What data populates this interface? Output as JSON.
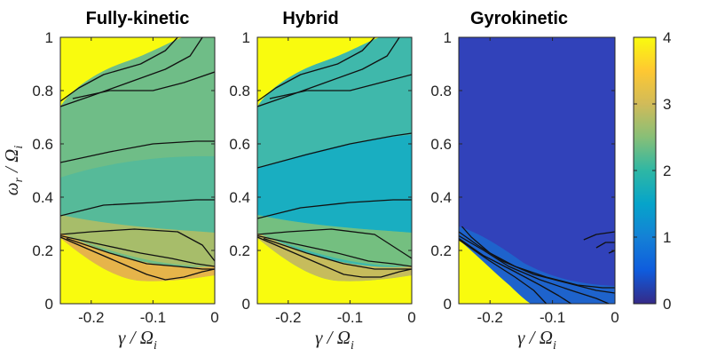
{
  "chart_data": [
    {
      "type": "heatmap",
      "title": "Fully-kinetic",
      "xlabel": {
        "main": "γ / Ω",
        "sub": "i"
      },
      "ylabel": {
        "main": "ω",
        "sub": "r",
        "denom": "/ Ω",
        "denom_sub": "i"
      },
      "xlim": [
        -0.25,
        0
      ],
      "ylim": [
        0,
        1
      ],
      "xticks": [
        -0.2,
        -0.1,
        0
      ],
      "xtick_labels": [
        "-0.2",
        "-0.1",
        "0"
      ],
      "yticks": [
        0,
        0.2,
        0.4,
        0.6,
        0.8,
        1
      ],
      "ytick_labels": [
        "0",
        "0.2",
        "0.4",
        "0.6",
        "0.8",
        "1"
      ],
      "regions": [
        {
          "name": "upper-saturated",
          "value": 4
        },
        {
          "name": "upper-band",
          "value": 2.3
        },
        {
          "name": "middle-band",
          "value": 2.0
        },
        {
          "name": "lower-band",
          "value": 2.6
        },
        {
          "name": "bottom-band",
          "value": 3.3
        },
        {
          "name": "lower-saturated",
          "value": 4
        }
      ],
      "contour_lines": [
        {
          "level": "boundary-upper",
          "points": [
            [
              -0.25,
              0.76
            ],
            [
              -0.22,
              0.81
            ],
            [
              -0.18,
              0.86
            ],
            [
              -0.12,
              0.9
            ],
            [
              -0.08,
              0.95
            ],
            [
              -0.06,
              1.0
            ]
          ]
        },
        {
          "level": "c1",
          "points": [
            [
              -0.25,
              0.74
            ],
            [
              -0.2,
              0.78
            ],
            [
              -0.14,
              0.83
            ],
            [
              -0.08,
              0.88
            ],
            [
              -0.04,
              0.93
            ],
            [
              -0.02,
              1.0
            ]
          ]
        },
        {
          "level": "c2",
          "points": [
            [
              -0.23,
              0.77
            ],
            [
              -0.17,
              0.8
            ],
            [
              -0.1,
              0.8
            ],
            [
              -0.05,
              0.83
            ],
            [
              0.0,
              0.87
            ]
          ]
        },
        {
          "level": "c3",
          "points": [
            [
              -0.25,
              0.53
            ],
            [
              -0.17,
              0.57
            ],
            [
              -0.1,
              0.6
            ],
            [
              -0.03,
              0.61
            ],
            [
              0.0,
              0.61
            ]
          ]
        },
        {
          "level": "c4",
          "points": [
            [
              -0.25,
              0.33
            ],
            [
              -0.18,
              0.37
            ],
            [
              -0.1,
              0.38
            ],
            [
              -0.03,
              0.39
            ],
            [
              0.0,
              0.39
            ]
          ]
        },
        {
          "level": "c5",
          "points": [
            [
              -0.25,
              0.26
            ],
            [
              -0.2,
              0.27
            ],
            [
              -0.13,
              0.28
            ],
            [
              -0.06,
              0.27
            ],
            [
              -0.02,
              0.22
            ],
            [
              0.0,
              0.16
            ]
          ]
        },
        {
          "level": "c6",
          "points": [
            [
              -0.25,
              0.255
            ],
            [
              -0.18,
              0.22
            ],
            [
              -0.12,
              0.19
            ],
            [
              -0.07,
              0.17
            ],
            [
              -0.03,
              0.15
            ],
            [
              0.0,
              0.14
            ]
          ]
        },
        {
          "level": "c7",
          "points": [
            [
              -0.24,
              0.245
            ],
            [
              -0.17,
              0.19
            ],
            [
              -0.11,
              0.15
            ],
            [
              -0.06,
              0.14
            ],
            [
              -0.02,
              0.13
            ],
            [
              0.0,
              0.13
            ]
          ]
        },
        {
          "level": "boundary-lower",
          "points": [
            [
              -0.25,
              0.25
            ],
            [
              -0.2,
              0.2
            ],
            [
              -0.15,
              0.15
            ],
            [
              -0.11,
              0.11
            ],
            [
              -0.08,
              0.09
            ],
            [
              -0.05,
              0.1
            ],
            [
              -0.02,
              0.12
            ],
            [
              0.0,
              0.13
            ]
          ]
        }
      ]
    },
    {
      "type": "heatmap",
      "title": "Hybrid",
      "xlabel": {
        "main": "γ / Ω",
        "sub": "i"
      },
      "xlim": [
        -0.25,
        0
      ],
      "ylim": [
        0,
        1
      ],
      "xticks": [
        -0.2,
        -0.1,
        0
      ],
      "xtick_labels": [
        "-0.2",
        "-0.1",
        "0"
      ],
      "yticks": [
        0,
        0.2,
        0.4,
        0.6,
        0.8,
        1
      ],
      "ytick_labels": [
        "0",
        "0.2",
        "0.4",
        "0.6",
        "0.8",
        "1"
      ],
      "regions": [
        {
          "name": "upper-saturated",
          "value": 4
        },
        {
          "name": "upper-band",
          "value": 2.3
        },
        {
          "name": "middle-band",
          "value": 1.8
        },
        {
          "name": "lower-band",
          "value": 2.4
        },
        {
          "name": "bottom-band",
          "value": 3.1
        },
        {
          "name": "lower-saturated",
          "value": 4
        }
      ],
      "contour_lines": [
        {
          "level": "boundary-upper",
          "points": [
            [
              -0.25,
              0.76
            ],
            [
              -0.22,
              0.81
            ],
            [
              -0.18,
              0.86
            ],
            [
              -0.12,
              0.9
            ],
            [
              -0.08,
              0.95
            ],
            [
              -0.06,
              1.0
            ]
          ]
        },
        {
          "level": "c1",
          "points": [
            [
              -0.25,
              0.74
            ],
            [
              -0.2,
              0.78
            ],
            [
              -0.14,
              0.83
            ],
            [
              -0.08,
              0.88
            ],
            [
              -0.04,
              0.93
            ],
            [
              -0.02,
              1.0
            ]
          ]
        },
        {
          "level": "c2",
          "points": [
            [
              -0.23,
              0.77
            ],
            [
              -0.17,
              0.8
            ],
            [
              -0.1,
              0.8
            ],
            [
              -0.05,
              0.83
            ],
            [
              0.0,
              0.86
            ]
          ]
        },
        {
          "level": "c3",
          "points": [
            [
              -0.25,
              0.51
            ],
            [
              -0.17,
              0.56
            ],
            [
              -0.1,
              0.6
            ],
            [
              -0.03,
              0.63
            ],
            [
              0.0,
              0.64
            ]
          ]
        },
        {
          "level": "c4",
          "points": [
            [
              -0.25,
              0.32
            ],
            [
              -0.18,
              0.36
            ],
            [
              -0.1,
              0.38
            ],
            [
              -0.03,
              0.39
            ],
            [
              0.0,
              0.39
            ]
          ]
        },
        {
          "level": "c5",
          "points": [
            [
              -0.25,
              0.26
            ],
            [
              -0.2,
              0.27
            ],
            [
              -0.13,
              0.28
            ],
            [
              -0.06,
              0.26
            ],
            [
              -0.02,
              0.2
            ],
            [
              0.0,
              0.17
            ]
          ]
        },
        {
          "level": "c6",
          "points": [
            [
              -0.25,
              0.255
            ],
            [
              -0.18,
              0.22
            ],
            [
              -0.12,
              0.19
            ],
            [
              -0.07,
              0.16
            ],
            [
              -0.03,
              0.15
            ],
            [
              0.0,
              0.14
            ]
          ]
        },
        {
          "level": "c7",
          "points": [
            [
              -0.24,
              0.245
            ],
            [
              -0.17,
              0.19
            ],
            [
              -0.11,
              0.15
            ],
            [
              -0.06,
              0.13
            ],
            [
              -0.02,
              0.13
            ],
            [
              0.0,
              0.13
            ]
          ]
        },
        {
          "level": "boundary-lower",
          "points": [
            [
              -0.25,
              0.25
            ],
            [
              -0.2,
              0.2
            ],
            [
              -0.15,
              0.15
            ],
            [
              -0.11,
              0.11
            ],
            [
              -0.08,
              0.1
            ],
            [
              -0.05,
              0.1
            ],
            [
              -0.02,
              0.12
            ],
            [
              0.0,
              0.13
            ]
          ]
        }
      ]
    },
    {
      "type": "heatmap",
      "title": "Gyrokinetic",
      "xlabel": {
        "main": "γ / Ω",
        "sub": "i"
      },
      "xlim": [
        -0.25,
        0
      ],
      "ylim": [
        0,
        1
      ],
      "xticks": [
        -0.2,
        -0.1,
        0
      ],
      "xtick_labels": [
        "-0.2",
        "-0.1",
        "0"
      ],
      "yticks": [
        0,
        0.2,
        0.4,
        0.6,
        0.8,
        1
      ],
      "ytick_labels": [
        "0",
        "0.2",
        "0.4",
        "0.6",
        "0.8",
        "1"
      ],
      "regions": [
        {
          "name": "background",
          "value": 0.2
        },
        {
          "name": "lower-field",
          "value": 0.8
        },
        {
          "name": "lower-saturated",
          "value": 4
        }
      ],
      "contour_lines": [
        {
          "level": "outer",
          "points": [
            [
              -0.245,
              0.29
            ],
            [
              -0.23,
              0.25
            ],
            [
              -0.2,
              0.19
            ],
            [
              -0.16,
              0.14
            ],
            [
              -0.11,
              0.1
            ],
            [
              -0.06,
              0.07
            ],
            [
              -0.02,
              0.06
            ],
            [
              0.0,
              0.06
            ]
          ]
        },
        {
          "level": "c1",
          "points": [
            [
              -0.25,
              0.27
            ],
            [
              -0.22,
              0.22
            ],
            [
              -0.18,
              0.16
            ],
            [
              -0.13,
              0.11
            ],
            [
              -0.08,
              0.08
            ],
            [
              -0.03,
              0.05
            ],
            [
              0.0,
              0.04
            ]
          ]
        },
        {
          "level": "c2",
          "points": [
            [
              -0.25,
              0.255
            ],
            [
              -0.21,
              0.2
            ],
            [
              -0.17,
              0.14
            ],
            [
              -0.12,
              0.09
            ],
            [
              -0.07,
              0.05
            ],
            [
              -0.03,
              0.02
            ],
            [
              -0.01,
              0.0
            ]
          ]
        },
        {
          "level": "c3",
          "points": [
            [
              -0.25,
              0.245
            ],
            [
              -0.21,
              0.18
            ],
            [
              -0.16,
              0.12
            ],
            [
              -0.12,
              0.07
            ],
            [
              -0.09,
              0.03
            ],
            [
              -0.07,
              0.0
            ]
          ]
        },
        {
          "level": "c4",
          "points": [
            [
              -0.25,
              0.24
            ],
            [
              -0.2,
              0.16
            ],
            [
              -0.16,
              0.1
            ],
            [
              -0.13,
              0.05
            ],
            [
              -0.11,
              0.0
            ]
          ]
        },
        {
          "level": "c5",
          "points": [
            [
              -0.05,
              0.24
            ],
            [
              -0.03,
              0.26
            ],
            [
              0.0,
              0.27
            ]
          ]
        },
        {
          "level": "c6",
          "points": [
            [
              -0.03,
              0.21
            ],
            [
              -0.015,
              0.23
            ],
            [
              0.0,
              0.23
            ]
          ]
        },
        {
          "level": "c7",
          "points": [
            [
              -0.01,
              0.19
            ],
            [
              0.0,
              0.2
            ]
          ]
        }
      ]
    }
  ],
  "colorbar": {
    "range": [
      0,
      4
    ],
    "ticks": [
      0,
      1,
      2,
      3,
      4
    ],
    "tick_labels": [
      "0",
      "1",
      "2",
      "3",
      "4"
    ],
    "colormap": [
      "#352a87",
      "#0f5cdd",
      "#1481d6",
      "#06a4ca",
      "#2eb7a4",
      "#87bf77",
      "#d1bb59",
      "#fec832",
      "#f9fb0e"
    ]
  }
}
